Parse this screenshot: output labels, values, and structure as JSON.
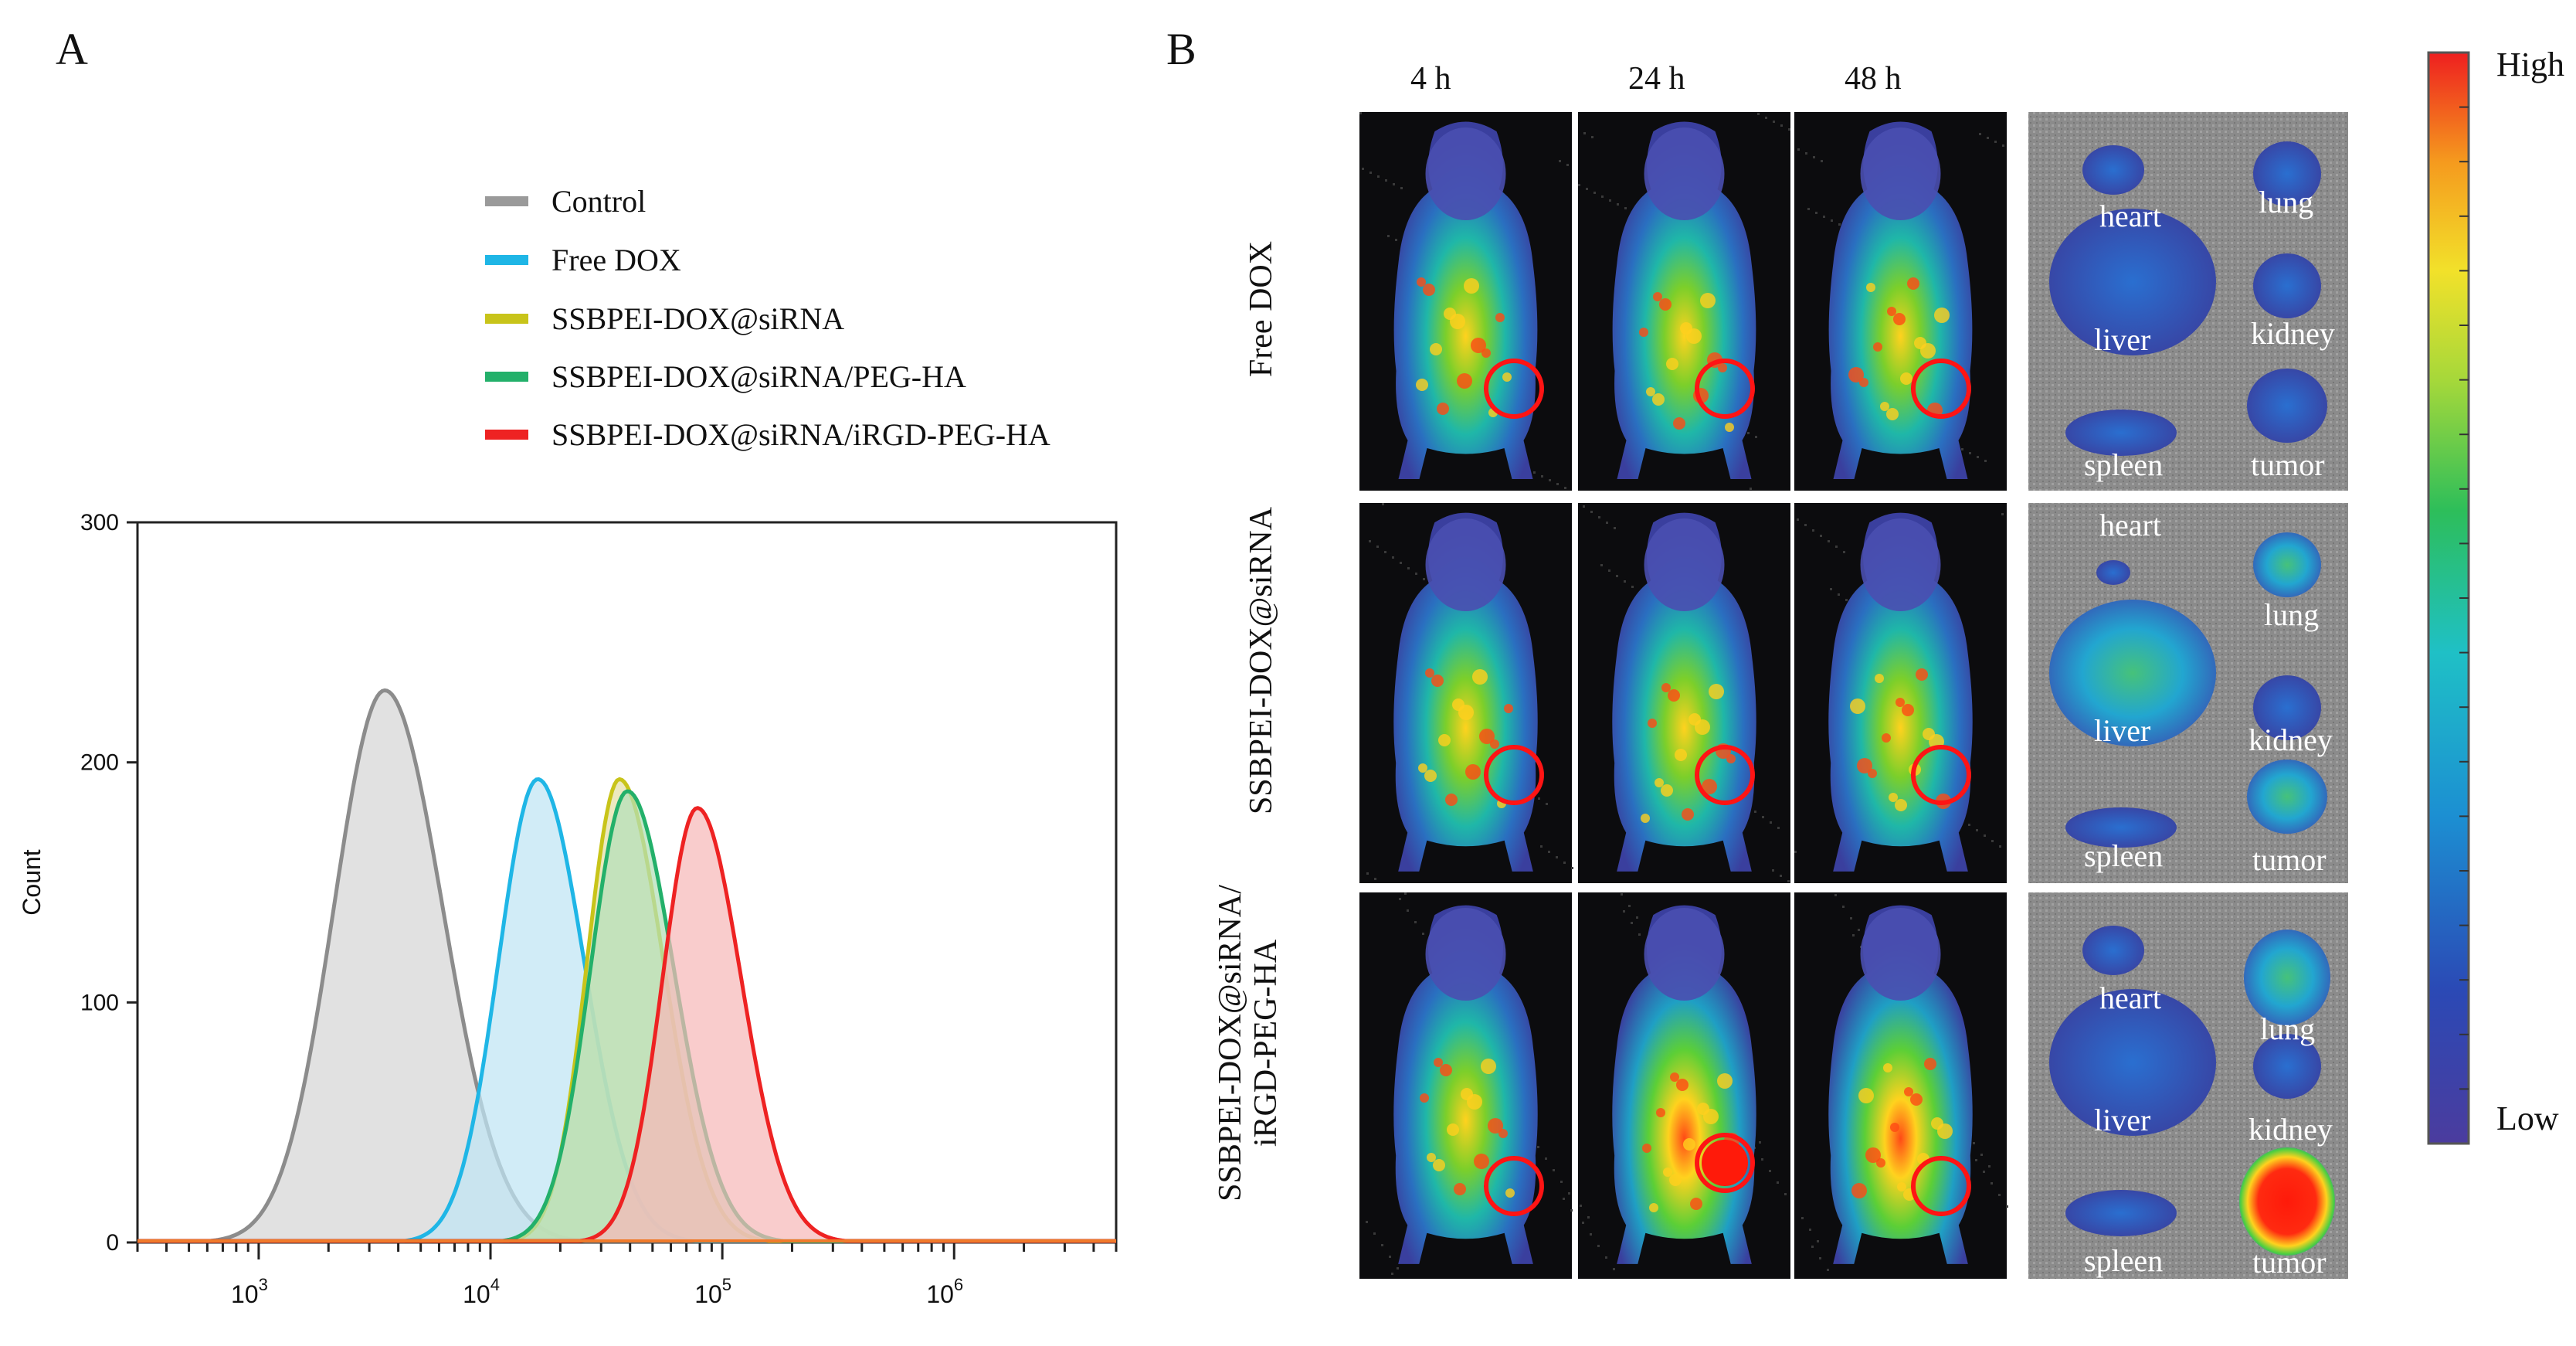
{
  "panels": {
    "a": "A",
    "b": "B"
  },
  "legend": [
    {
      "label": "Control",
      "color": "#9a9a9a"
    },
    {
      "label": "Free DOX",
      "color": "#1fb6e6"
    },
    {
      "label": "SSBPEI-DOX@siRNA",
      "color": "#c8c41a"
    },
    {
      "label": "SSBPEI-DOX@siRNA/PEG-HA",
      "color": "#23b06a"
    },
    {
      "label": "SSBPEI-DOX@siRNA/iRGD-PEG-HA",
      "color": "#ee2222"
    }
  ],
  "chart_data": {
    "type": "area",
    "title": "",
    "xlabel": "",
    "ylabel": "Count",
    "xscale": "log",
    "xlim": [
      300,
      5000000
    ],
    "ylim": [
      0,
      300
    ],
    "yticks": [
      0,
      100,
      200,
      300
    ],
    "xticks": [
      {
        "value": 1000,
        "base": "10",
        "exp": "3"
      },
      {
        "value": 10000,
        "base": "10",
        "exp": "4"
      },
      {
        "value": 100000,
        "base": "10",
        "exp": "5"
      },
      {
        "value": 1000000,
        "base": "10",
        "exp": "6"
      }
    ],
    "series": [
      {
        "name": "Control",
        "color": "#8c8c8c",
        "fill": "#d6d6d6",
        "peak_x": 3500,
        "peak_y": 230,
        "sigma_left": 0.22,
        "sigma_right": 0.25
      },
      {
        "name": "Free DOX",
        "color": "#1fb6e6",
        "fill": "#bfe4f4",
        "peak_x": 16000,
        "peak_y": 193,
        "sigma_left": 0.17,
        "sigma_right": 0.2
      },
      {
        "name": "SSBPEI-DOX@siRNA",
        "color": "#c8c41a",
        "fill": "#e4e0a8",
        "peak_x": 36000,
        "peak_y": 193,
        "sigma_left": 0.14,
        "sigma_right": 0.19
      },
      {
        "name": "SSBPEI-DOX@siRNA/PEG-HA",
        "color": "#23b06a",
        "fill": "#b3dfb8",
        "peak_x": 39000,
        "peak_y": 188,
        "sigma_left": 0.16,
        "sigma_right": 0.2
      },
      {
        "name": "SSBPEI-DOX@siRNA/iRGD-PEG-HA",
        "color": "#ee2222",
        "fill": "#f6b8b8",
        "peak_x": 78000,
        "peak_y": 181,
        "sigma_left": 0.15,
        "sigma_right": 0.19
      }
    ]
  },
  "imaging": {
    "time_labels": [
      "4 h",
      "24 h",
      "48 h"
    ],
    "row_labels": [
      [
        "Free DOX"
      ],
      [
        "SSBPEI-DOX@siRNA"
      ],
      [
        "SSBPEI-DOX@siRNA/",
        "iRGD-PEG-HA"
      ]
    ],
    "organ_labels": [
      "heart",
      "lung",
      "liver",
      "kidney",
      "spleen",
      "tumor"
    ],
    "colorbar": {
      "high": "High",
      "low": "Low"
    }
  }
}
